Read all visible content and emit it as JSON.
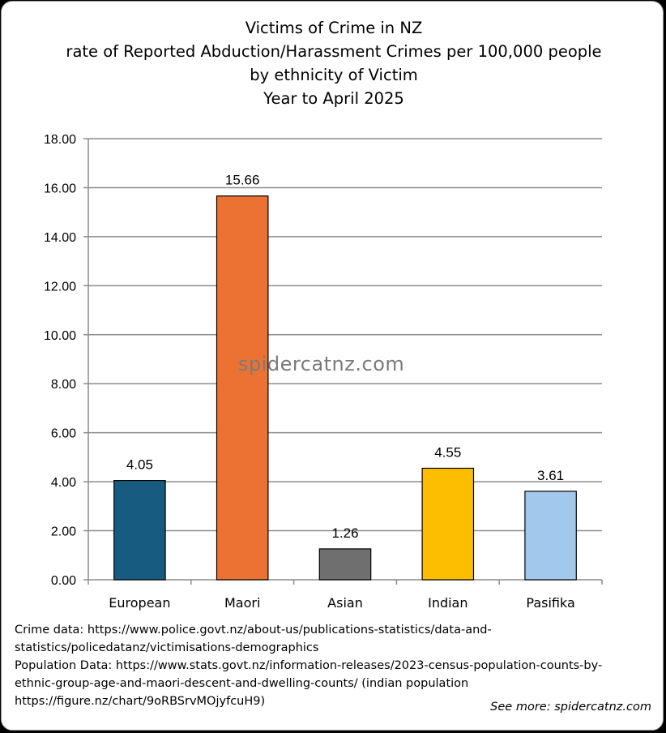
{
  "chart_data": {
    "type": "bar",
    "title_lines": [
      "Victims of Crime in NZ",
      "rate of Reported Abduction/Harassment Crimes per 100,000 people",
      "by ethnicity of Victim",
      "Year to April 2025"
    ],
    "categories": [
      "European",
      "Maori",
      "Asian",
      "Indian",
      "Pasifika"
    ],
    "values": [
      4.05,
      15.66,
      1.26,
      4.55,
      3.61
    ],
    "data_labels": [
      "4.05",
      "15.66",
      "1.26",
      "4.55",
      "3.61"
    ],
    "colors": [
      "#175c80",
      "#eb7232",
      "#6f6f6f",
      "#fdbd00",
      "#a2c8ec"
    ],
    "ylim": [
      0,
      18
    ],
    "yticks": [
      "0.00",
      "2.00",
      "4.00",
      "6.00",
      "8.00",
      "10.00",
      "12.00",
      "14.00",
      "16.00",
      "18.00"
    ],
    "grid": true,
    "xlabel": "",
    "ylabel": ""
  },
  "watermark": "spidercatnz.com",
  "notes": [
    "Crime data: https://www.police.govt.nz/about-us/publications-statistics/data-and-",
    "statistics/policedatanz/victimisations-demographics",
    "Population Data: https://www.stats.govt.nz/information-releases/2023-census-population-counts-by-",
    "ethnic-group-age-and-maori-descent-and-dwelling-counts/ (indian population",
    "https://figure.nz/chart/9oRBSrvMOjyfcuH9)"
  ],
  "see_more": "See more: spidercatnz.com"
}
